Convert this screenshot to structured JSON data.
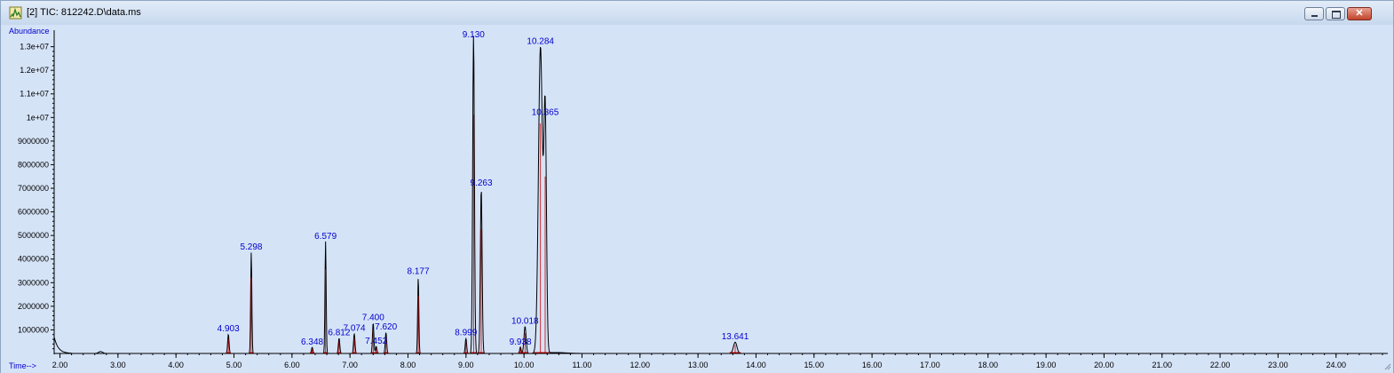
{
  "window": {
    "title": "[2] TIC: 812242.D\\data.ms",
    "icons": {
      "app": "chromatogram-app-icon",
      "minimize": "minimize-icon",
      "maximize": "maximize-icon",
      "close": "close-icon"
    },
    "colors": {
      "chart_bg": "#d5e3f7",
      "trace": "#000000",
      "baseline": "#cc0000",
      "label": "#0000cc"
    }
  },
  "chart_data": {
    "type": "line",
    "ylabel": "Abundance",
    "xlabel": "Time-->",
    "xlim": [
      1.9,
      24.8
    ],
    "ylim": [
      0,
      13700000
    ],
    "x_ticks": [
      "2.00",
      "3.00",
      "4.00",
      "5.00",
      "6.00",
      "7.00",
      "8.00",
      "9.00",
      "10.00",
      "11.00",
      "12.00",
      "13.00",
      "14.00",
      "15.00",
      "16.00",
      "17.00",
      "18.00",
      "19.00",
      "20.00",
      "21.00",
      "22.00",
      "23.00",
      "24.00"
    ],
    "y_ticks": [
      {
        "value": 1000000,
        "label": "1000000"
      },
      {
        "value": 2000000,
        "label": "2000000"
      },
      {
        "value": 3000000,
        "label": "3000000"
      },
      {
        "value": 4000000,
        "label": "4000000"
      },
      {
        "value": 5000000,
        "label": "5000000"
      },
      {
        "value": 6000000,
        "label": "6000000"
      },
      {
        "value": 7000000,
        "label": "7000000"
      },
      {
        "value": 8000000,
        "label": "8000000"
      },
      {
        "value": 9000000,
        "label": "9000000"
      },
      {
        "value": 10000000,
        "label": "1e+07"
      },
      {
        "value": 11000000,
        "label": "1.1e+07"
      },
      {
        "value": 12000000,
        "label": "1.2e+07"
      },
      {
        "value": 13000000,
        "label": "1.3e+07"
      }
    ],
    "grid": false,
    "peaks": [
      {
        "rt": 4.903,
        "label": "4.903",
        "height": 820000,
        "width": 0.012
      },
      {
        "rt": 5.298,
        "label": "5.298",
        "height": 4300000,
        "width": 0.01
      },
      {
        "rt": 6.348,
        "label": "6.348",
        "height": 260000,
        "width": 0.012
      },
      {
        "rt": 6.579,
        "label": "6.579",
        "height": 4750000,
        "width": 0.01
      },
      {
        "rt": 6.812,
        "label": "6.812",
        "height": 650000,
        "width": 0.012
      },
      {
        "rt": 7.074,
        "label": "7.074",
        "height": 850000,
        "width": 0.012
      },
      {
        "rt": 7.4,
        "label": "7.400",
        "height": 1300000,
        "width": 0.012
      },
      {
        "rt": 7.452,
        "label": "7.452",
        "height": 300000,
        "width": 0.012
      },
      {
        "rt": 7.62,
        "label": "7.620",
        "height": 900000,
        "width": 0.012
      },
      {
        "rt": 8.177,
        "label": "8.177",
        "height": 3250000,
        "width": 0.01
      },
      {
        "rt": 8.999,
        "label": "8.999",
        "height": 650000,
        "width": 0.012
      },
      {
        "rt": 9.13,
        "label": "9.130",
        "height": 13500000,
        "width": 0.015
      },
      {
        "rt": 9.263,
        "label": "9.263",
        "height": 7000000,
        "width": 0.015
      },
      {
        "rt": 9.938,
        "label": "9.938",
        "height": 270000,
        "width": 0.012
      },
      {
        "rt": 10.018,
        "label": "10.018",
        "height": 1150000,
        "width": 0.018
      },
      {
        "rt": 10.284,
        "label": "10.284",
        "height": 13000000,
        "width": 0.035
      },
      {
        "rt": 10.365,
        "label": "10.365",
        "height": 10000000,
        "width": 0.022
      },
      {
        "rt": 13.641,
        "label": "13.641",
        "height": 480000,
        "width": 0.03
      }
    ]
  }
}
